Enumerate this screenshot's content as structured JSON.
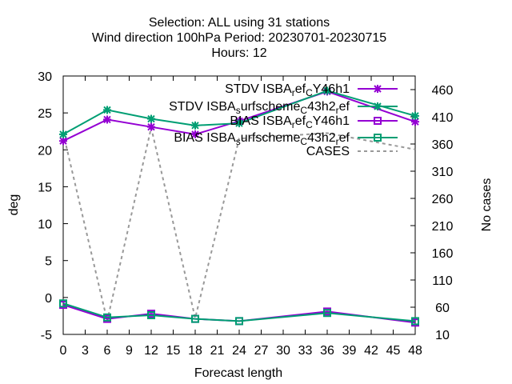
{
  "chart_data": {
    "type": "line",
    "title_lines": [
      "Selection: ALL using    31 stations",
      "Wind direction 100hPa   Period: 20230701-20230715",
      "Hours:  12"
    ],
    "xlabel": "Forecast length",
    "ylabel": "deg",
    "y2label": "No cases",
    "xlim": [
      0,
      48
    ],
    "ylim": [
      -5,
      30
    ],
    "y2lim": [
      10,
      485
    ],
    "xticks": [
      0,
      3,
      6,
      9,
      12,
      15,
      18,
      21,
      24,
      27,
      30,
      33,
      36,
      39,
      42,
      45,
      48
    ],
    "yticks": [
      -5,
      0,
      5,
      10,
      15,
      20,
      25,
      30
    ],
    "y2ticks": [
      10,
      60,
      110,
      160,
      210,
      260,
      310,
      360,
      410,
      460
    ],
    "legend_position": "top-right",
    "series": [
      {
        "name": "STDV ISBA_ref_CY46h1",
        "legend_text": "STDV ISBA",
        "legend_sub": "r",
        "legend_rest": "ef",
        "legend_sub2": "C",
        "legend_tail": "Y46h1",
        "axis": "y",
        "color": "#9400d3",
        "marker": "x",
        "x": [
          0,
          6,
          12,
          18,
          24,
          36,
          48
        ],
        "values": [
          21.2,
          24.1,
          23.1,
          22.1,
          23.9,
          27.9,
          23.8
        ]
      },
      {
        "name": "STDV ISBA_surfscheme_C43h2_ref",
        "legend_text": "STDV ISBA",
        "legend_sub": "s",
        "legend_rest": "urfscheme",
        "legend_sub2": "C",
        "legend_tail": "43h2",
        "legend_sub3": "r",
        "legend_tail2": "ef",
        "axis": "y",
        "color": "#009e73",
        "marker": "x",
        "x": [
          0,
          6,
          12,
          18,
          24,
          36,
          48
        ],
        "values": [
          22.1,
          25.4,
          24.2,
          23.3,
          23.6,
          28.0,
          24.6
        ]
      },
      {
        "name": "BIAS ISBA_ref_CY46h1",
        "legend_text": "BIAS ISBA",
        "legend_sub": "r",
        "legend_rest": "ef",
        "legend_sub2": "C",
        "legend_tail": "Y46h1",
        "axis": "y",
        "color": "#9400d3",
        "marker": "square",
        "x": [
          0,
          6,
          12,
          18,
          24,
          36,
          48
        ],
        "values": [
          -1.0,
          -2.9,
          -2.2,
          -2.9,
          -3.2,
          -1.9,
          -3.4
        ]
      },
      {
        "name": "BIAS ISBA_surfscheme_C43h2_ref",
        "legend_text": "BIAS ISBA",
        "legend_sub": "s",
        "legend_rest": "urfscheme",
        "legend_sub2": "C",
        "legend_tail": "43h2",
        "legend_sub3": "r",
        "legend_tail2": "ef",
        "axis": "y",
        "color": "#009e73",
        "marker": "square",
        "x": [
          0,
          6,
          12,
          18,
          24,
          36,
          48
        ],
        "values": [
          -0.8,
          -2.7,
          -2.4,
          -2.9,
          -3.2,
          -2.1,
          -3.2
        ]
      },
      {
        "name": "CASES",
        "legend_text": "CASES",
        "axis": "y2",
        "color": "#999999",
        "marker": "none",
        "dash": "4,4",
        "x": [
          0,
          6,
          12,
          18,
          24,
          36,
          48
        ],
        "values": [
          380,
          35,
          390,
          40,
          370,
          380,
          350
        ]
      }
    ]
  }
}
